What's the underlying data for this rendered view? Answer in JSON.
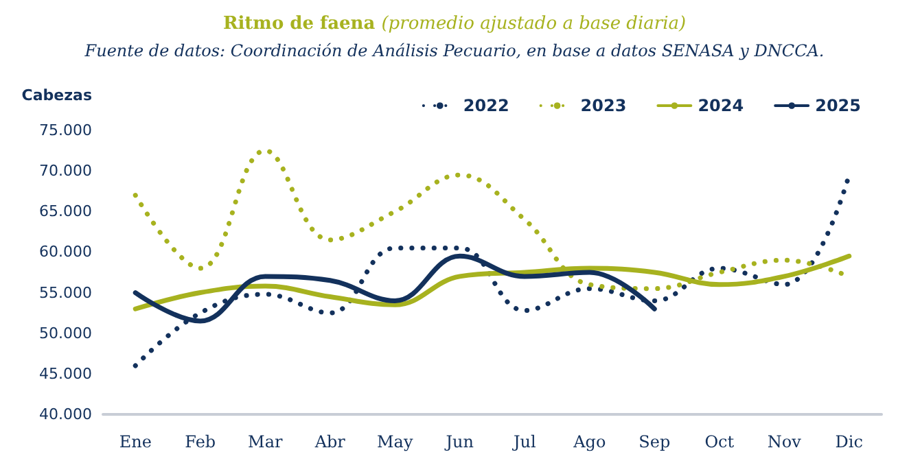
{
  "chart_data": {
    "type": "line",
    "title": "Ritmo de faena",
    "subtitle": "(promedio ajustado a base diaria)",
    "annotations": [
      "Fuente de datos: Coordinación de Análisis Pecuario, en base a datos SENASA y DNCCA."
    ],
    "ylabel": "Cabezas",
    "categories": [
      "Ene",
      "Feb",
      "Mar",
      "Abr",
      "May",
      "Jun",
      "Jul",
      "Ago",
      "Sep",
      "Oct",
      "Nov",
      "Dic"
    ],
    "series": [
      {
        "name": "2022",
        "color": "#13315c",
        "line_style": "dotted",
        "values": [
          46000,
          52500,
          54800,
          52500,
          60500,
          60500,
          52800,
          55500,
          54000,
          58000,
          56000,
          69500
        ]
      },
      {
        "name": "2023",
        "color": "#a7b21f",
        "line_style": "dotted",
        "values": [
          67000,
          58000,
          72500,
          61500,
          65000,
          69500,
          64000,
          56000,
          55500,
          57500,
          59000,
          57000
        ]
      },
      {
        "name": "2024",
        "color": "#a7b21f",
        "line_style": "solid",
        "values": [
          53000,
          55000,
          55800,
          54500,
          53500,
          57000,
          57500,
          58000,
          57500,
          56000,
          57000,
          59500
        ]
      },
      {
        "name": "2025",
        "color": "#13315c",
        "line_style": "solid",
        "values": [
          55000,
          51500,
          57000,
          56500,
          54000,
          59500,
          57000,
          57500,
          53000,
          null,
          null,
          null
        ]
      }
    ],
    "ylim": [
      40000,
      75000
    ],
    "yticks": [
      {
        "value": 40000,
        "label": "40.000"
      },
      {
        "value": 45000,
        "label": "45.000"
      },
      {
        "value": 50000,
        "label": "50.000"
      },
      {
        "value": 55000,
        "label": "55.000"
      },
      {
        "value": 60000,
        "label": "60.000"
      },
      {
        "value": 65000,
        "label": "65.000"
      },
      {
        "value": 70000,
        "label": "70.000"
      },
      {
        "value": 75000,
        "label": "75.000"
      }
    ],
    "grid": false,
    "legend": "top right",
    "marker": "none"
  }
}
